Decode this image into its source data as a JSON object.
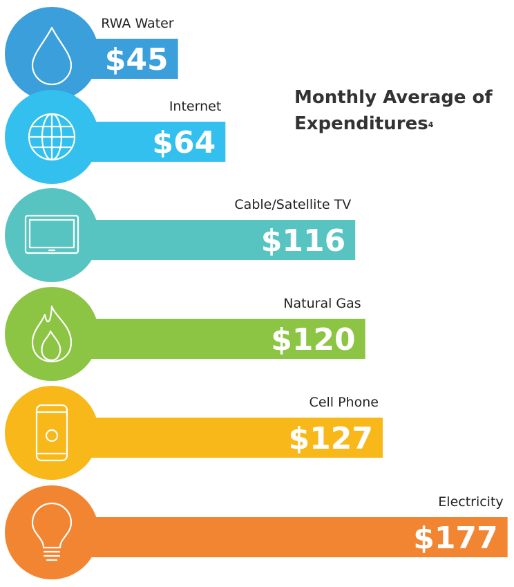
{
  "chart_data": {
    "type": "bar",
    "orientation": "horizontal",
    "title": "Monthly Average of Expenditures",
    "footnote": "4",
    "categories": [
      "RWA Water",
      "Internet",
      "Cable/Satellite TV",
      "Natural Gas",
      "Cell Phone",
      "Electricity"
    ],
    "values": [
      45,
      64,
      116,
      120,
      127,
      177
    ],
    "value_labels": [
      "$45",
      "$64",
      "$116",
      "$120",
      "$127",
      "$177"
    ],
    "colors": [
      "#3a9fda",
      "#33c0ee",
      "#58c4c1",
      "#8cc443",
      "#f8b81a",
      "#f28532"
    ]
  }
}
